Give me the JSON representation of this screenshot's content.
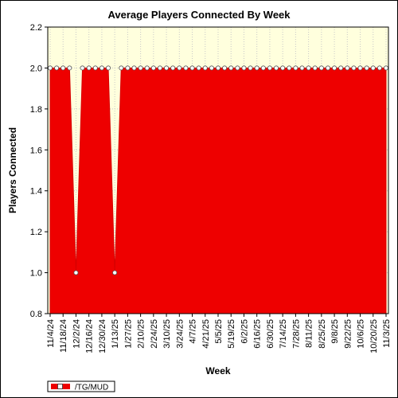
{
  "chart_data": {
    "type": "area",
    "title": "Average Players Connected By Week",
    "xlabel": "Week",
    "ylabel": "Players Connected",
    "ylim": [
      0.8,
      2.2
    ],
    "yticks": [
      "0.8",
      "1.0",
      "1.2",
      "1.4",
      "1.6",
      "1.8",
      "2.0",
      "2.2"
    ],
    "grid": true,
    "legend_position": "bottom-left",
    "colors": {
      "fill": "#ee0000",
      "plot_background": "#ffffdd",
      "grid": "#c8c8c8",
      "marker_fill": "#ffffff"
    },
    "x": [
      "11/4/24",
      "11/11/24",
      "11/18/24",
      "11/25/24",
      "12/2/24",
      "12/9/24",
      "12/16/24",
      "12/23/24",
      "12/30/24",
      "1/6/25",
      "1/13/25",
      "1/20/25",
      "1/27/25",
      "2/3/25",
      "2/10/25",
      "2/17/25",
      "2/24/25",
      "3/3/25",
      "3/10/25",
      "3/17/25",
      "3/24/25",
      "3/31/25",
      "4/7/25",
      "4/14/25",
      "4/21/25",
      "4/28/25",
      "5/5/25",
      "5/12/25",
      "5/19/25",
      "5/26/25",
      "6/2/25",
      "6/9/25",
      "6/16/25",
      "6/23/25",
      "6/30/25",
      "7/7/25",
      "7/14/25",
      "7/21/25",
      "7/28/25",
      "8/4/25",
      "8/11/25",
      "8/18/25",
      "8/25/25",
      "9/1/25",
      "9/8/25",
      "9/15/25",
      "9/22/25",
      "9/29/25",
      "10/6/25",
      "10/13/25",
      "10/20/25",
      "10/27/25",
      "11/3/25"
    ],
    "x_tick_labels": [
      "11/4/24",
      "11/18/24",
      "12/2/24",
      "12/16/24",
      "12/30/24",
      "1/13/25",
      "1/27/25",
      "2/10/25",
      "2/24/25",
      "3/10/25",
      "3/24/25",
      "4/7/25",
      "4/21/25",
      "5/5/25",
      "5/19/25",
      "6/2/25",
      "6/16/25",
      "6/30/25",
      "7/14/25",
      "7/28/25",
      "8/11/25",
      "8/25/25",
      "9/8/25",
      "9/22/25",
      "10/6/25",
      "10/20/25",
      "11/3/25"
    ],
    "series": [
      {
        "name": "/TG/MUD",
        "values": [
          2,
          2,
          2,
          2,
          1,
          2,
          2,
          2,
          2,
          2,
          1,
          2,
          2,
          2,
          2,
          2,
          2,
          2,
          2,
          2,
          2,
          2,
          2,
          2,
          2,
          2,
          2,
          2,
          2,
          2,
          2,
          2,
          2,
          2,
          2,
          2,
          2,
          2,
          2,
          2,
          2,
          2,
          2,
          2,
          2,
          2,
          2,
          2,
          2,
          2,
          2,
          2,
          2
        ]
      }
    ]
  }
}
